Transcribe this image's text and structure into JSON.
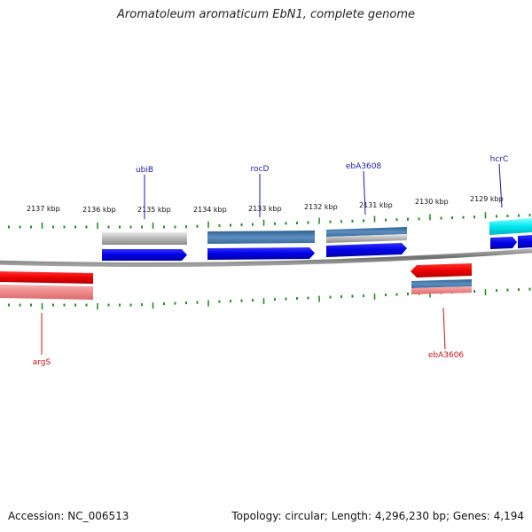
{
  "header": {
    "title": "Aromatoleum aromaticum EbN1, complete genome"
  },
  "footer": {
    "accession": "Accession: NC_006513",
    "summary": "Topology: circular; Length: 4,296,230 bp; Genes: 4,194"
  },
  "map": {
    "backbone_color": "#888888",
    "tick_color": "#2a8a2a",
    "ticks_top": [
      "2137 kbp",
      "2136 kbp",
      "2135 kbp",
      "2134 kbp",
      "2133 kbp",
      "2132 kbp",
      "2131 kbp",
      "2130 kbp",
      "2129 kbp"
    ],
    "gene_labels": {
      "ubiB": {
        "text": "ubiB",
        "color": "#1a1aaa"
      },
      "rocD": {
        "text": "rocD",
        "color": "#1a1aaa"
      },
      "ebA3608": {
        "text": "ebA3608",
        "color": "#1a1aaa"
      },
      "hcrC": {
        "text": "hcrC",
        "color": "#1a1aaa"
      },
      "argS": {
        "text": "argS",
        "color": "#cc1111"
      },
      "ebA3606": {
        "text": "ebA3606",
        "color": "#cc1111"
      }
    },
    "colors": {
      "forward_cds": "#0000ee",
      "reverse_cds": "#ee0000",
      "feature_gray": "#b8b8b8",
      "feature_steel": "#4a7eb0",
      "feature_cyan": "#00e8f0",
      "feature_pink": "#f09090"
    }
  }
}
